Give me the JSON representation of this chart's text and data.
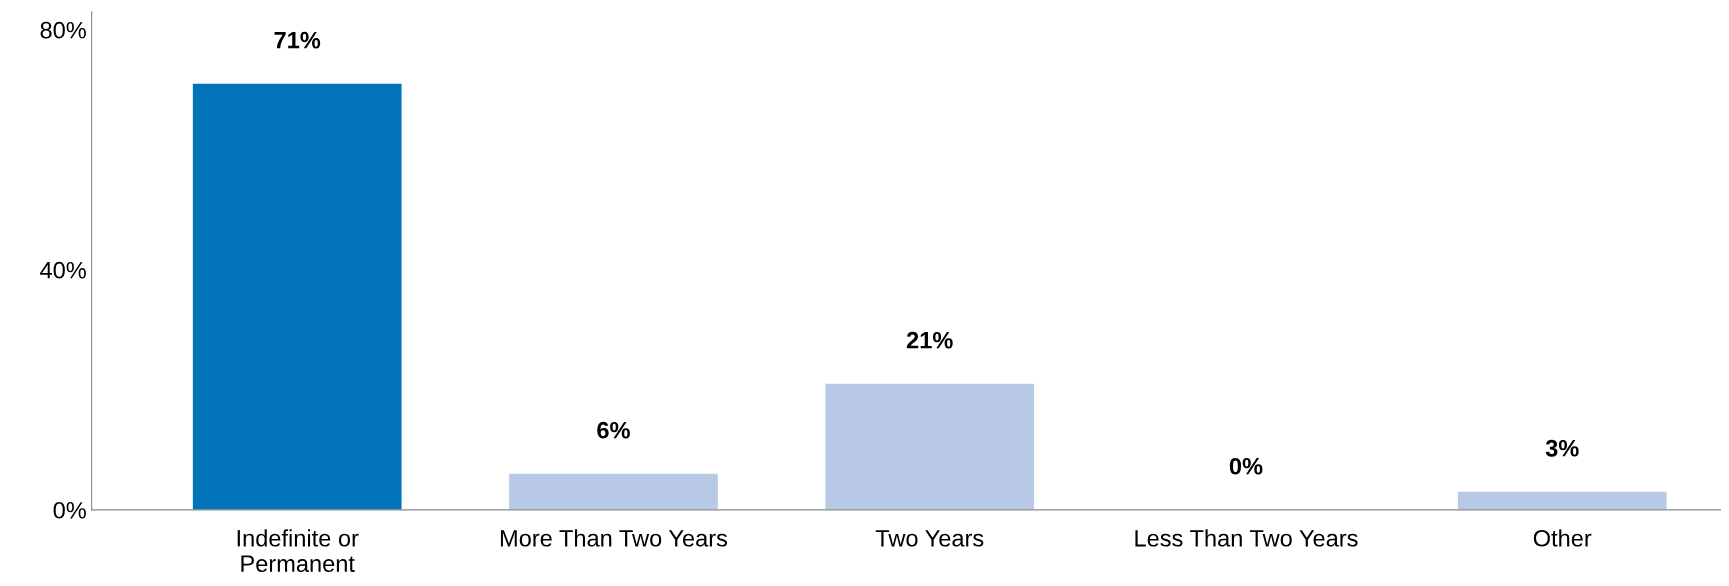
{
  "chart_data": {
    "type": "bar",
    "categories": [
      "Indefinite or\nPermanent",
      "More Than Two Years",
      "Two Years",
      "Less Than Two Years",
      "Other"
    ],
    "values": [
      71,
      6,
      21,
      0,
      3
    ],
    "colors": [
      "#0073b9",
      "#b8c9e6",
      "#b8c9e6",
      "#b8c9e6",
      "#b8c9e6"
    ],
    "value_labels": [
      "71%",
      "6%",
      "21%",
      "0%",
      "3%"
    ],
    "ylim": [
      0,
      83
    ],
    "yticks": [
      {
        "value": 0,
        "label": "0%"
      },
      {
        "value": 40,
        "label": "40%"
      },
      {
        "value": 80,
        "label": "80%"
      }
    ],
    "grid": false,
    "legend": false
  }
}
